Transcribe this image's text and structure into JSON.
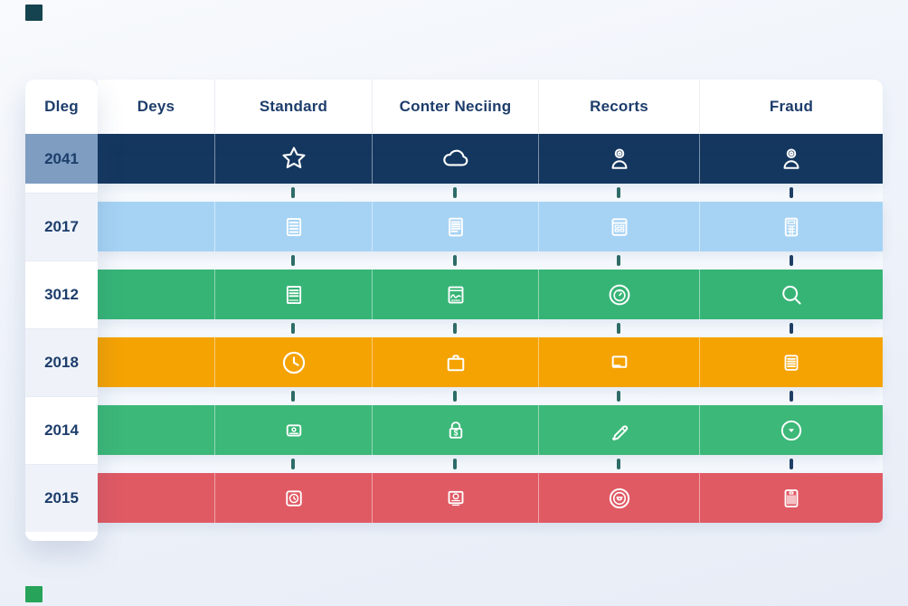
{
  "page": {
    "decor_square_top_left_color": "#15434f",
    "decor_square_bottom_left_color": "#27a35a",
    "text_color": "#1d3d6b"
  },
  "table": {
    "header": {
      "row_label": "Dleg",
      "columns": [
        {
          "label": "Deys"
        },
        {
          "label": "Standard"
        },
        {
          "label": "Conter Neciing"
        },
        {
          "label": "Recorts"
        },
        {
          "label": "Fraud"
        }
      ]
    },
    "rows": [
      {
        "year": "2041",
        "row_color": "#14375f",
        "year_cell_color": "#7e9dc1",
        "icons": [
          "",
          "star-icon",
          "cloud-icon",
          "user-at-icon",
          "user-at-icon"
        ]
      },
      {
        "year": "2017",
        "row_color": "#a6d3f4",
        "year_cell_color": "",
        "icons": [
          "",
          "document-lines-icon",
          "document-text-icon",
          "calendar-card-icon",
          "calculator-icon"
        ]
      },
      {
        "year": "3012",
        "row_color": "#36b476",
        "year_cell_color": "",
        "icons": [
          "",
          "document-caption-icon",
          "chart-window-icon",
          "stopwatch-circle-icon",
          "magnifier-icon"
        ]
      },
      {
        "year": "2018",
        "row_color": "#f5a203",
        "year_cell_color": "",
        "icons": [
          "",
          "clock-circle-icon",
          "briefcase-icon",
          "laptop-icon",
          "note-lines-icon"
        ]
      },
      {
        "year": "2014",
        "row_color": "#3cb878",
        "year_cell_color": "",
        "icons": [
          "",
          "webcam-icon",
          "lock-dollar-icon",
          "pen-icon",
          "circle-chevron-down-icon"
        ]
      },
      {
        "year": "2015",
        "row_color": "#e05a64",
        "year_cell_color": "",
        "icons": [
          "",
          "clock-square-icon",
          "monitor-clock-icon",
          "target-circle-icon",
          "barcode-card-icon"
        ]
      }
    ],
    "icon_color": "#ffffff",
    "connector_colors": [
      "#2f6d68",
      "#2f6d68",
      "#2f6d68",
      "#1f3f66"
    ]
  },
  "chart_data": {
    "type": "table",
    "title": "",
    "columns": [
      "Dleg",
      "Deys",
      "Standard",
      "Conter Neciing",
      "Recorts",
      "Fraud"
    ],
    "rows": [
      [
        "2041",
        "",
        "star",
        "cloud",
        "user-at",
        "user-at"
      ],
      [
        "2017",
        "",
        "document-lines",
        "document-text",
        "calendar-card",
        "calculator"
      ],
      [
        "3012",
        "",
        "document-caption",
        "chart-window",
        "stopwatch",
        "magnifier"
      ],
      [
        "2018",
        "",
        "clock",
        "briefcase",
        "laptop",
        "note-lines"
      ],
      [
        "2014",
        "",
        "webcam",
        "lock-dollar",
        "pen",
        "chevron-down-circle"
      ],
      [
        "2015",
        "",
        "clock-square",
        "monitor-clock",
        "target",
        "barcode"
      ]
    ],
    "row_colors": [
      "#14375f",
      "#a6d3f4",
      "#36b476",
      "#f5a203",
      "#3cb878",
      "#e05a64"
    ],
    "highlighted_row": "2041"
  }
}
